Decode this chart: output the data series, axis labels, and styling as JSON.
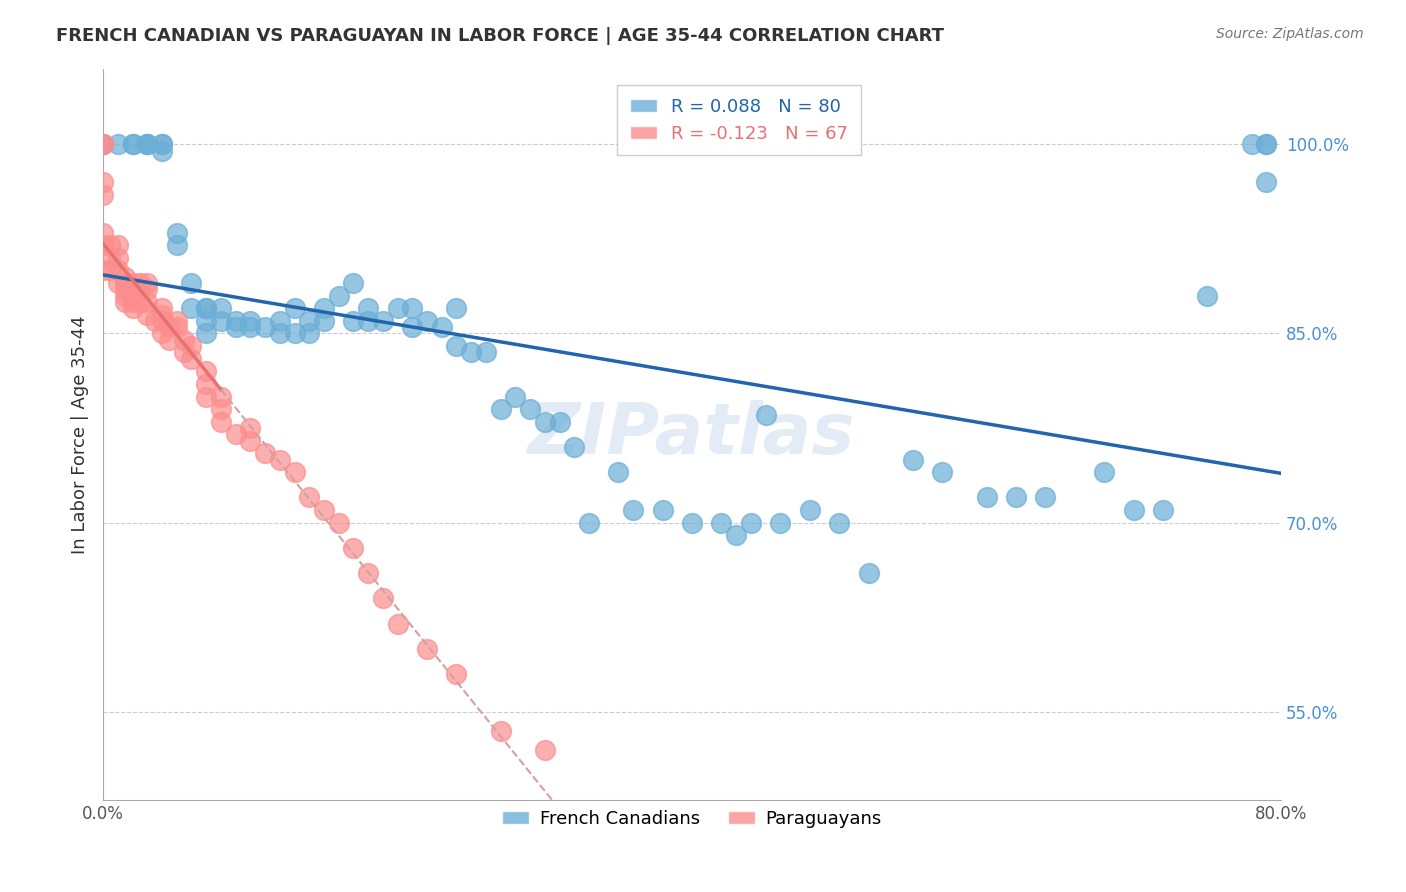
{
  "title": "FRENCH CANADIAN VS PARAGUAYAN IN LABOR FORCE | AGE 35-44 CORRELATION CHART",
  "source": "Source: ZipAtlas.com",
  "xlabel_bottom": "",
  "ylabel": "In Labor Force | Age 35-44",
  "xlim": [
    0.0,
    0.8
  ],
  "ylim": [
    0.48,
    1.06
  ],
  "xticks": [
    0.0,
    0.1,
    0.2,
    0.3,
    0.4,
    0.5,
    0.6,
    0.7,
    0.8
  ],
  "xticklabels": [
    "0.0%",
    "",
    "",
    "",
    "",
    "",
    "",
    "",
    "80.0%"
  ],
  "yticks_right": [
    0.55,
    0.7,
    0.85,
    1.0
  ],
  "ytick_labels_right": [
    "55.0%",
    "70.0%",
    "85.0%",
    "100.0%"
  ],
  "R_blue": 0.088,
  "N_blue": 80,
  "R_pink": -0.123,
  "N_pink": 67,
  "blue_color": "#6baed6",
  "pink_color": "#fc8d8d",
  "blue_line_color": "#2166ac",
  "pink_line_color": "#e87070",
  "pink_dashed_color": "#d4a0a0",
  "legend_blue_label": "French Canadians",
  "legend_pink_label": "Paraguayans",
  "watermark": "ZIPatlas",
  "blue_scatter_x": [
    0.0,
    0.01,
    0.02,
    0.02,
    0.03,
    0.03,
    0.03,
    0.04,
    0.04,
    0.04,
    0.05,
    0.05,
    0.06,
    0.06,
    0.07,
    0.07,
    0.07,
    0.07,
    0.08,
    0.08,
    0.09,
    0.09,
    0.1,
    0.1,
    0.11,
    0.12,
    0.12,
    0.13,
    0.13,
    0.14,
    0.14,
    0.15,
    0.15,
    0.16,
    0.17,
    0.17,
    0.18,
    0.18,
    0.19,
    0.2,
    0.21,
    0.21,
    0.22,
    0.23,
    0.24,
    0.24,
    0.25,
    0.26,
    0.27,
    0.28,
    0.29,
    0.3,
    0.31,
    0.32,
    0.33,
    0.35,
    0.36,
    0.38,
    0.4,
    0.42,
    0.43,
    0.44,
    0.45,
    0.46,
    0.48,
    0.5,
    0.52,
    0.55,
    0.57,
    0.6,
    0.62,
    0.64,
    0.68,
    0.7,
    0.72,
    0.75,
    0.78,
    0.79,
    0.79,
    0.79
  ],
  "blue_scatter_y": [
    1.0,
    1.0,
    1.0,
    1.0,
    1.0,
    1.0,
    1.0,
    1.0,
    1.0,
    0.995,
    0.93,
    0.92,
    0.89,
    0.87,
    0.87,
    0.87,
    0.86,
    0.85,
    0.87,
    0.86,
    0.86,
    0.855,
    0.86,
    0.855,
    0.855,
    0.86,
    0.85,
    0.85,
    0.87,
    0.85,
    0.86,
    0.87,
    0.86,
    0.88,
    0.89,
    0.86,
    0.87,
    0.86,
    0.86,
    0.87,
    0.87,
    0.855,
    0.86,
    0.855,
    0.87,
    0.84,
    0.835,
    0.835,
    0.79,
    0.8,
    0.79,
    0.78,
    0.78,
    0.76,
    0.7,
    0.74,
    0.71,
    0.71,
    0.7,
    0.7,
    0.69,
    0.7,
    0.785,
    0.7,
    0.71,
    0.7,
    0.66,
    0.75,
    0.74,
    0.72,
    0.72,
    0.72,
    0.74,
    0.71,
    0.71,
    0.88,
    1.0,
    1.0,
    1.0,
    0.97
  ],
  "pink_scatter_x": [
    0.0,
    0.0,
    0.0,
    0.0,
    0.0,
    0.0,
    0.0,
    0.005,
    0.005,
    0.005,
    0.01,
    0.01,
    0.01,
    0.01,
    0.015,
    0.015,
    0.015,
    0.015,
    0.015,
    0.02,
    0.02,
    0.02,
    0.02,
    0.02,
    0.025,
    0.025,
    0.025,
    0.03,
    0.03,
    0.03,
    0.03,
    0.035,
    0.04,
    0.04,
    0.04,
    0.04,
    0.045,
    0.045,
    0.05,
    0.05,
    0.055,
    0.055,
    0.06,
    0.06,
    0.07,
    0.07,
    0.07,
    0.08,
    0.08,
    0.08,
    0.09,
    0.1,
    0.1,
    0.11,
    0.12,
    0.13,
    0.14,
    0.15,
    0.16,
    0.17,
    0.18,
    0.19,
    0.2,
    0.22,
    0.24,
    0.27,
    0.3
  ],
  "pink_scatter_y": [
    1.0,
    1.0,
    0.97,
    0.96,
    0.93,
    0.92,
    0.9,
    0.92,
    0.91,
    0.9,
    0.92,
    0.91,
    0.9,
    0.89,
    0.895,
    0.89,
    0.885,
    0.88,
    0.875,
    0.89,
    0.885,
    0.88,
    0.875,
    0.87,
    0.89,
    0.885,
    0.875,
    0.89,
    0.885,
    0.875,
    0.865,
    0.86,
    0.87,
    0.865,
    0.86,
    0.85,
    0.855,
    0.845,
    0.86,
    0.855,
    0.845,
    0.835,
    0.84,
    0.83,
    0.82,
    0.81,
    0.8,
    0.8,
    0.79,
    0.78,
    0.77,
    0.775,
    0.765,
    0.755,
    0.75,
    0.74,
    0.72,
    0.71,
    0.7,
    0.68,
    0.66,
    0.64,
    0.62,
    0.6,
    0.58,
    0.535,
    0.52
  ]
}
